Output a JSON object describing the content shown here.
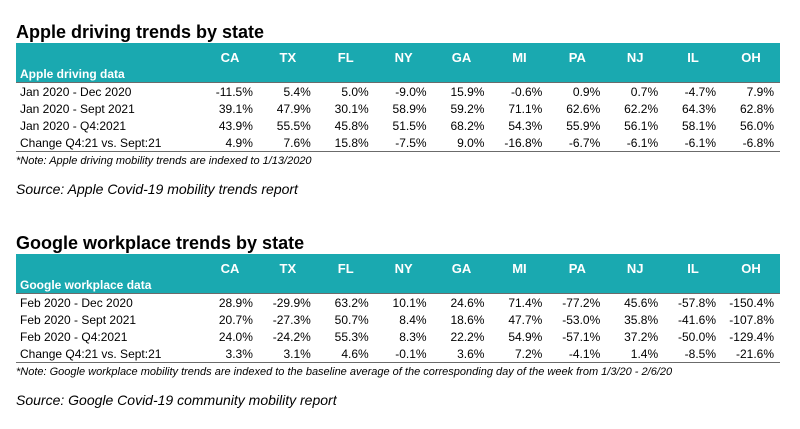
{
  "colors": {
    "header_bg": "#1aa9b0",
    "header_text": "#ffffff",
    "rule": "#6b6b6b"
  },
  "apple": {
    "title": "Apple driving trends by state",
    "group_label": "Apple driving data",
    "columns": [
      "CA",
      "TX",
      "FL",
      "NY",
      "GA",
      "MI",
      "PA",
      "NJ",
      "IL",
      "OH"
    ],
    "rows": [
      {
        "label": "Jan 2020 - Dec 2020",
        "values": [
          "-11.5%",
          "5.4%",
          "5.0%",
          "-9.0%",
          "15.9%",
          "-0.6%",
          "0.9%",
          "0.7%",
          "-4.7%",
          "7.9%"
        ]
      },
      {
        "label": "Jan 2020 - Sept 2021",
        "values": [
          "39.1%",
          "47.9%",
          "30.1%",
          "58.9%",
          "59.2%",
          "71.1%",
          "62.6%",
          "62.2%",
          "64.3%",
          "62.8%"
        ]
      },
      {
        "label": "Jan 2020 - Q4:2021",
        "values": [
          "43.9%",
          "55.5%",
          "45.8%",
          "51.5%",
          "68.2%",
          "54.3%",
          "55.9%",
          "56.1%",
          "58.1%",
          "56.0%"
        ]
      },
      {
        "label": "Change Q4:21 vs. Sept:21",
        "values": [
          "4.9%",
          "7.6%",
          "15.8%",
          "-7.5%",
          "9.0%",
          "-16.8%",
          "-6.7%",
          "-6.1%",
          "-6.1%",
          "-6.8%"
        ]
      }
    ],
    "note": "*Note: Apple driving mobility trends are indexed to 1/13/2020",
    "source": "Source: Apple Covid-19 mobility trends report"
  },
  "google": {
    "title": "Google workplace trends by state",
    "group_label": "Google workplace data",
    "columns": [
      "CA",
      "TX",
      "FL",
      "NY",
      "GA",
      "MI",
      "PA",
      "NJ",
      "IL",
      "OH"
    ],
    "rows": [
      {
        "label": "Feb 2020 - Dec 2020",
        "values": [
          "28.9%",
          "-29.9%",
          "63.2%",
          "10.1%",
          "24.6%",
          "71.4%",
          "-77.2%",
          "45.6%",
          "-57.8%",
          "-150.4%"
        ]
      },
      {
        "label": "Feb 2020 - Sept 2021",
        "values": [
          "20.7%",
          "-27.3%",
          "50.7%",
          "8.4%",
          "18.6%",
          "47.7%",
          "-53.0%",
          "35.8%",
          "-41.6%",
          "-107.8%"
        ]
      },
      {
        "label": "Feb 2020 - Q4:2021",
        "values": [
          "24.0%",
          "-24.2%",
          "55.3%",
          "8.3%",
          "22.2%",
          "54.9%",
          "-57.1%",
          "37.2%",
          "-50.0%",
          "-129.4%"
        ]
      },
      {
        "label": "Change Q4:21 vs. Sept:21",
        "values": [
          "3.3%",
          "3.1%",
          "4.6%",
          "-0.1%",
          "3.6%",
          "7.2%",
          "-4.1%",
          "1.4%",
          "-8.5%",
          "-21.6%"
        ]
      }
    ],
    "note": "*Note: Google workplace mobility trends are indexed to the baseline average of the corresponding day of the week from 1/3/20 - 2/6/20",
    "source": "Source: Google Covid-19 community mobility report"
  }
}
